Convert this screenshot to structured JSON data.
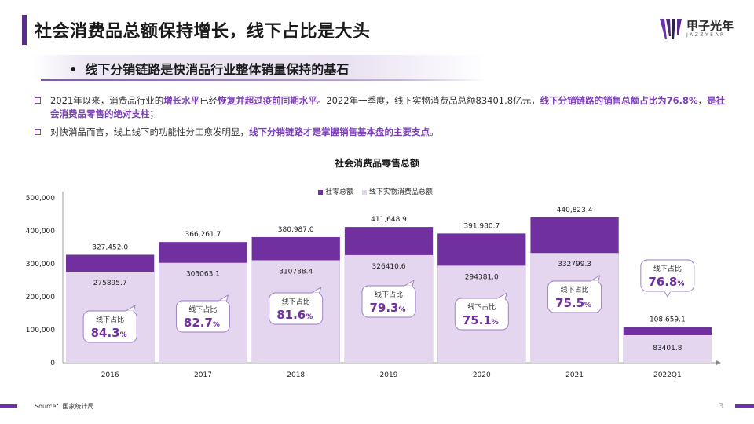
{
  "header": {
    "title": "社会消费品总额保持增长，线下占比是大头",
    "logo_text": "甲子光年",
    "logo_sub": "JAZZYEAR"
  },
  "subtitle": {
    "bullet": "•",
    "text": "线下分销链路是快消品行业整体销量保持的基石"
  },
  "bullets": [
    {
      "parts": [
        {
          "t": "2021年以来，消费品行业的",
          "hl": false
        },
        {
          "t": "增长水平",
          "hl": true
        },
        {
          "t": "已经",
          "hl": false
        },
        {
          "t": "恢复并超过疫前同期水平",
          "hl": true
        },
        {
          "t": "。2022年一季度，线下实物消费品总额83401.8亿元，",
          "hl": false
        },
        {
          "t": "线下分销链路的销售总额占比为76.8%",
          "hl": true
        },
        {
          "t": "，",
          "hl": false
        },
        {
          "t": "是社会消费品零售的绝对支柱",
          "hl": true
        },
        {
          "t": "；",
          "hl": false
        }
      ]
    },
    {
      "parts": [
        {
          "t": "对快消品而言，线上线下的功能性分工愈发明显，",
          "hl": false
        },
        {
          "t": "线下分销链路才是掌握销售基本盘的主要支点",
          "hl": true
        },
        {
          "t": "。",
          "hl": false
        }
      ]
    }
  ],
  "colors": {
    "accent": "#7030a0",
    "total_bar": "#7030a0",
    "offline_bar": "#e3d6ee",
    "highlight_text": "#7b3fb8"
  },
  "chart_data": {
    "type": "bar",
    "title": "社会消费品零售总额",
    "categories": [
      "2016",
      "2017",
      "2018",
      "2019",
      "2020",
      "2021",
      "2022Q1"
    ],
    "series": [
      {
        "name": "社零总额",
        "values": [
          327452.0,
          366261.7,
          380987.0,
          411648.9,
          391980.7,
          440823.4,
          108659.1
        ],
        "labels": [
          "327,452.0",
          "366,261.7",
          "380,987.0",
          "411,648.9",
          "391,980.7",
          "440,823.4",
          "108,659.1"
        ]
      },
      {
        "name": "线下实物消费品总额",
        "values": [
          275895.7,
          303063.1,
          310788.4,
          326410.6,
          294381.0,
          332799.3,
          83401.8
        ],
        "labels": [
          "275895.7",
          "303063.1",
          "310788.4",
          "326410.6",
          "294381.0",
          "332799.3",
          "83401.8"
        ]
      }
    ],
    "annotations": {
      "label": "线下占比",
      "values": [
        "84.3",
        "82.7",
        "81.6",
        "79.3",
        "75.1",
        "75.5",
        "76.8"
      ],
      "unit": "%"
    },
    "ylim": [
      0,
      500000
    ],
    "yticks": [
      0,
      100000,
      200000,
      300000,
      400000,
      500000
    ],
    "ytick_labels": [
      "0",
      "100,000",
      "200,000",
      "300,000",
      "400,000",
      "500,000"
    ],
    "xlabel": "",
    "ylabel": "",
    "legend_position": "top"
  },
  "footer": {
    "source": "Source：国家统计局",
    "page": "3"
  }
}
